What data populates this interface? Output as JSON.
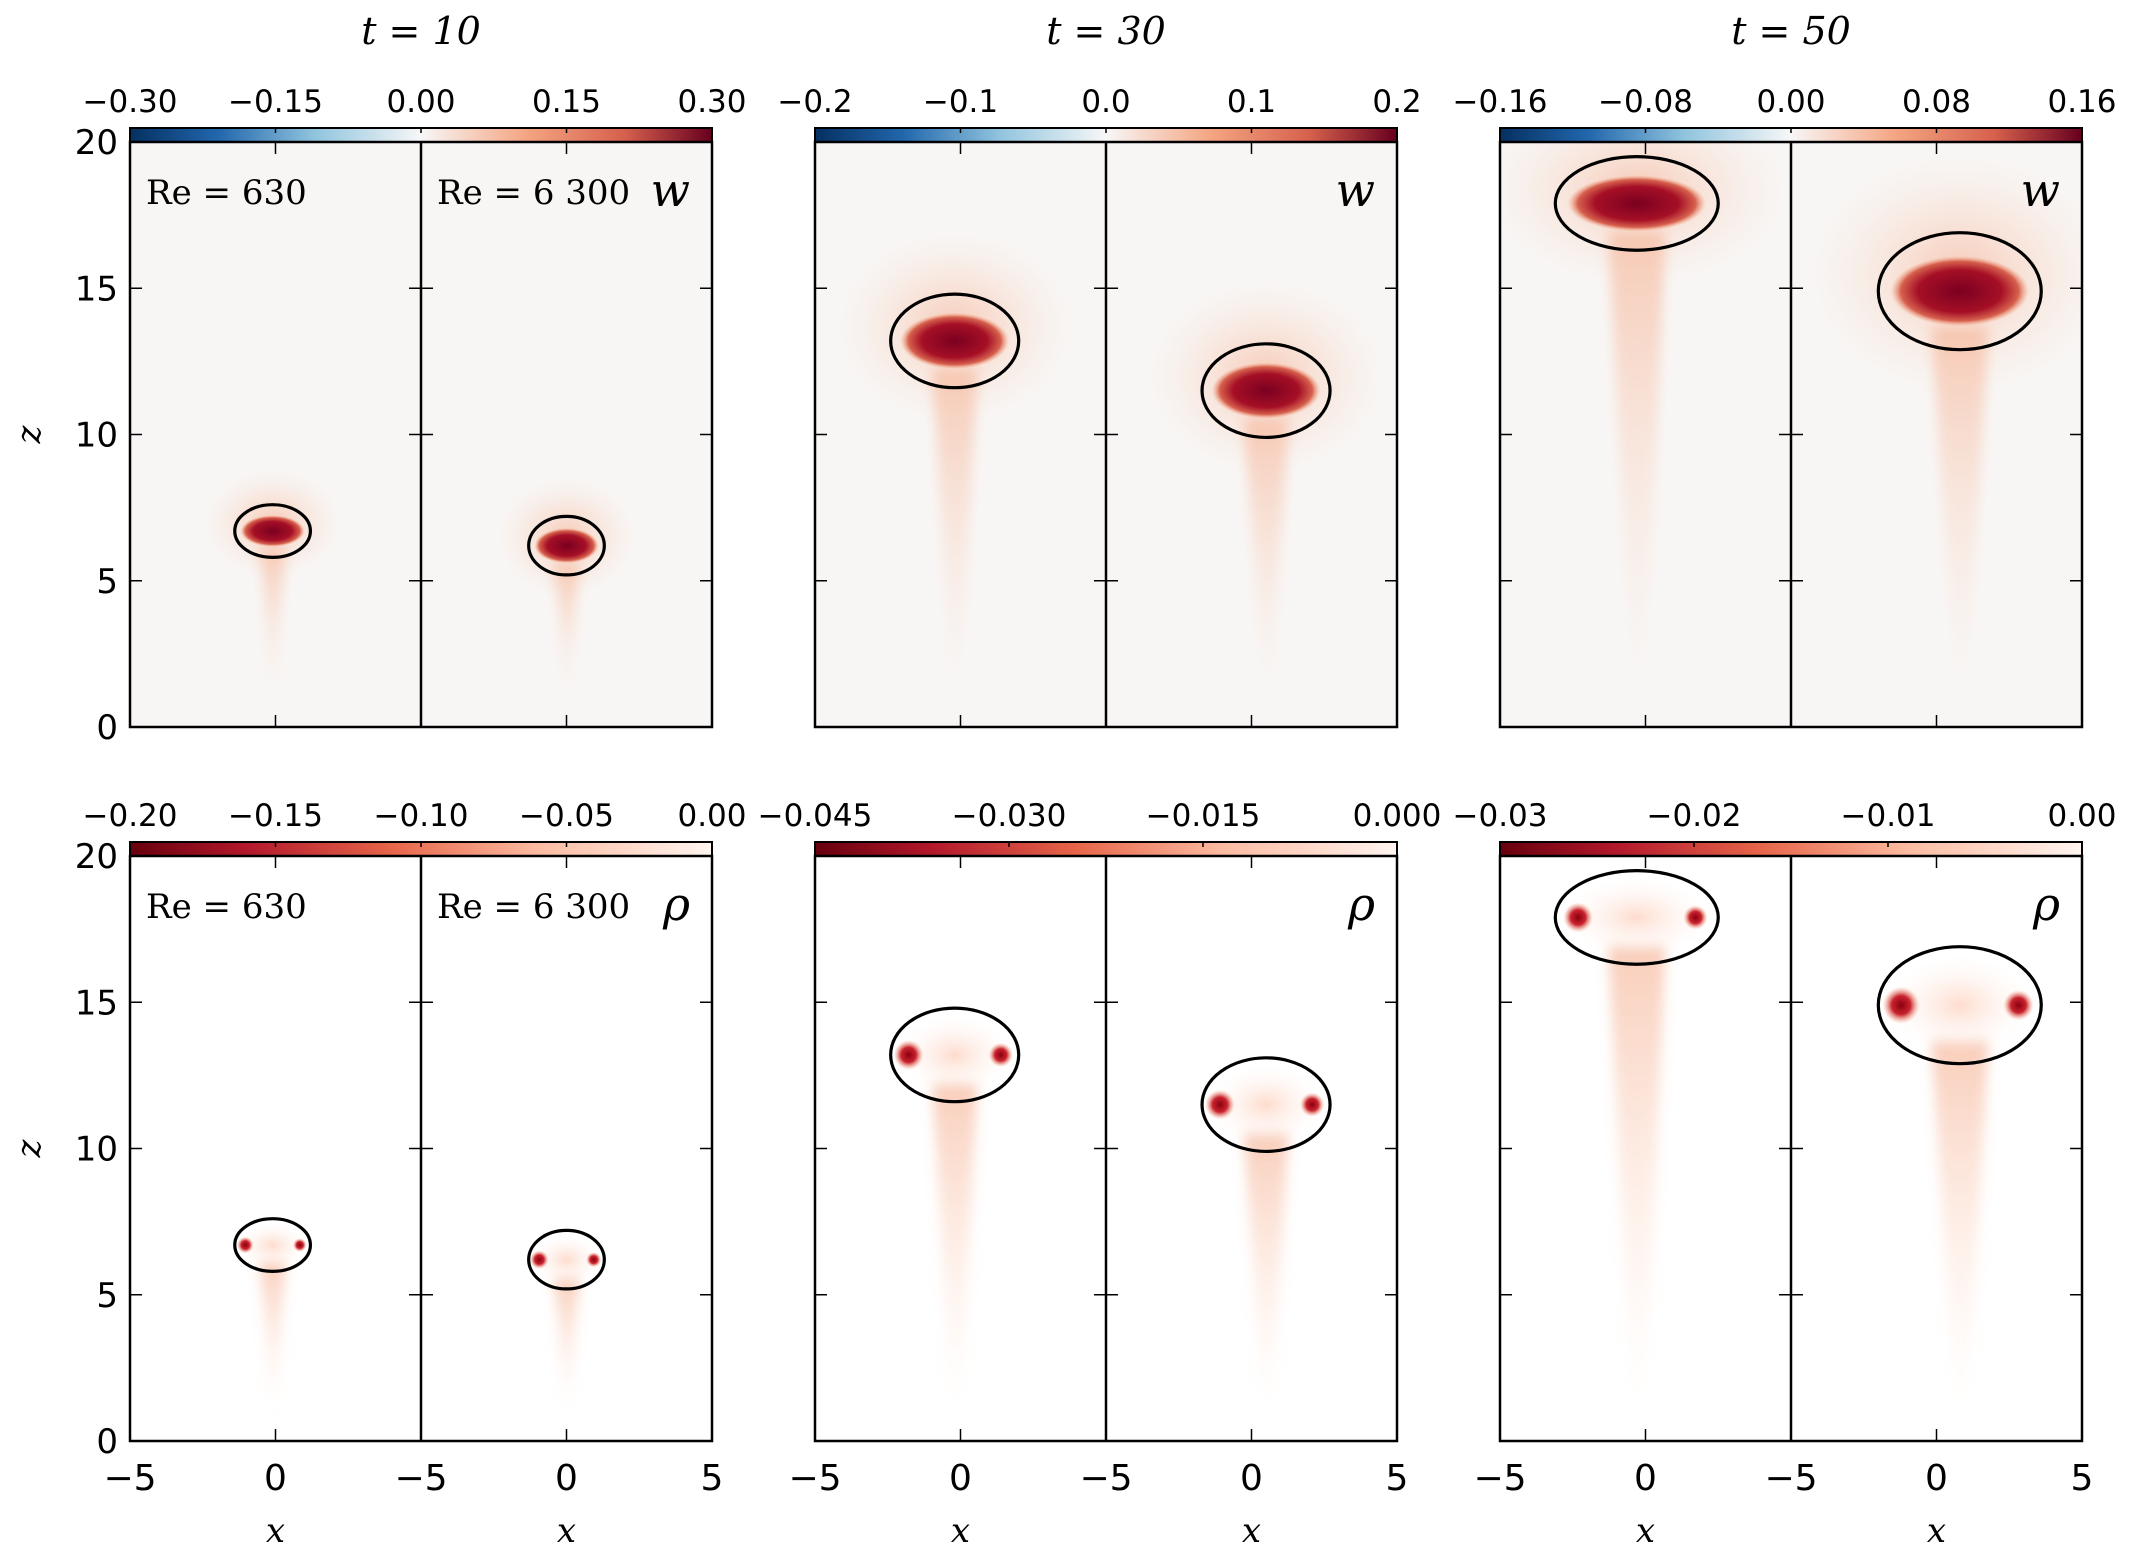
{
  "chart_data": {
    "type": "heatmap",
    "description_units": {
      "x": "x",
      "z": "z"
    },
    "xlim": [
      -5,
      5
    ],
    "zlim": [
      0,
      20
    ],
    "x_ticks": [
      "−5",
      "0",
      "5"
    ],
    "z_ticks": [
      "0",
      "5",
      "10",
      "15",
      "20"
    ],
    "xlabel": "x",
    "ylabel": "z",
    "panel_labels": {
      "left": "Re = 630",
      "right": "Re = 6 300"
    },
    "time_titles": [
      "t = 10",
      "t = 30",
      "t = 50"
    ],
    "rows": [
      {
        "field": "w",
        "colormap": "diverging-RdBu",
        "colorbars": [
          {
            "ticks": [
              "−0.30",
              "−0.15",
              "0.00",
              "0.15",
              "0.30"
            ],
            "range": [
              -0.3,
              0.3
            ]
          },
          {
            "ticks": [
              "−0.2",
              "−0.1",
              "0.0",
              "0.1",
              "0.2"
            ],
            "range": [
              -0.2,
              0.2
            ]
          },
          {
            "ticks": [
              "−0.16",
              "−0.08",
              "0.00",
              "0.08",
              "0.16"
            ],
            "range": [
              -0.16,
              0.16
            ]
          }
        ]
      },
      {
        "field": "ρ",
        "colormap": "sequential-Reds-reversed",
        "colorbars": [
          {
            "ticks": [
              "−0.20",
              "−0.15",
              "−0.10",
              "−0.05",
              "0.00"
            ],
            "range": [
              -0.2,
              0.0
            ]
          },
          {
            "ticks": [
              "−0.045",
              "−0.030",
              "−0.015",
              "0.000"
            ],
            "range": [
              -0.045,
              0.0
            ]
          },
          {
            "ticks": [
              "−0.03",
              "−0.02",
              "−0.01",
              "0.00"
            ],
            "range": [
              -0.03,
              0.0
            ]
          }
        ]
      }
    ],
    "thermal_boundaries": [
      {
        "time": 10,
        "Re": 630,
        "center_x": -0.1,
        "center_z": 6.7,
        "half_width": 1.3,
        "half_height": 0.9
      },
      {
        "time": 10,
        "Re": 6300,
        "center_x": 0.0,
        "center_z": 6.2,
        "half_width": 1.3,
        "half_height": 1.0
      },
      {
        "time": 30,
        "Re": 630,
        "center_x": -0.2,
        "center_z": 13.2,
        "half_width": 2.2,
        "half_height": 1.6
      },
      {
        "time": 30,
        "Re": 6300,
        "center_x": 0.5,
        "center_z": 11.5,
        "half_width": 2.2,
        "half_height": 1.6
      },
      {
        "time": 50,
        "Re": 630,
        "center_x": -0.3,
        "center_z": 17.9,
        "half_width": 2.8,
        "half_height": 1.6
      },
      {
        "time": 50,
        "Re": 6300,
        "center_x": 0.8,
        "center_z": 14.9,
        "half_width": 2.8,
        "half_height": 2.0
      }
    ]
  }
}
